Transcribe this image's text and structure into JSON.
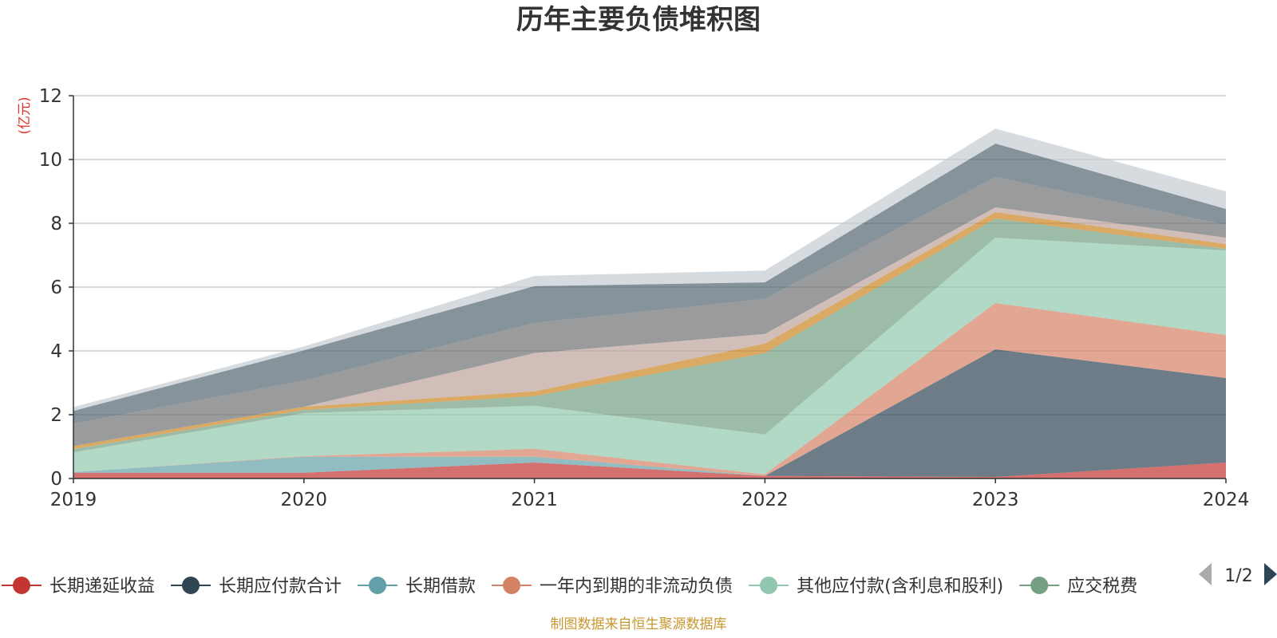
{
  "chart_data": {
    "type": "area",
    "stacked": true,
    "title": "历年主要负债堆积图",
    "unit_label": "(亿元)",
    "x": [
      "2019",
      "2020",
      "2021",
      "2022",
      "2023",
      "2024"
    ],
    "ylim": [
      0,
      12
    ],
    "yticks": [
      0,
      2,
      4,
      6,
      8,
      10,
      12
    ],
    "grid": true,
    "legend_position": "bottom",
    "series": [
      {
        "name": "长期递延收益",
        "color": "#c23531",
        "values": [
          0.18,
          0.18,
          0.5,
          0.08,
          0.05,
          0.5
        ]
      },
      {
        "name": "长期应付款合计",
        "color": "#2f4554",
        "values": [
          0,
          0,
          0,
          0,
          4.0,
          2.65
        ]
      },
      {
        "name": "长期借款",
        "color": "#61a0a8",
        "values": [
          0.02,
          0.5,
          0.18,
          0,
          0,
          0
        ]
      },
      {
        "name": "一年内到期的非流动负债",
        "color": "#d48265",
        "values": [
          0,
          0.02,
          0.25,
          0.05,
          1.45,
          1.35
        ]
      },
      {
        "name": "其他应付款(含利息和股利)",
        "color": "#91c7ae",
        "values": [
          0.62,
          1.35,
          1.35,
          1.25,
          2.05,
          2.65
        ]
      },
      {
        "name": "应交税费",
        "color": "#749f83",
        "values": [
          0.1,
          0.1,
          0.3,
          2.55,
          0.6,
          0.05
        ]
      },
      {
        "name": "",
        "color": "#ca8622",
        "values": [
          0.1,
          0.1,
          0.15,
          0.3,
          0.2,
          0.15
        ]
      },
      {
        "name": "",
        "color": "#bda29a",
        "values": [
          0,
          0,
          1.2,
          0.3,
          0.15,
          0.2
        ]
      },
      {
        "name": "",
        "color": "#6e7074",
        "values": [
          0.7,
          0.82,
          0.95,
          1.1,
          0.95,
          0.4
        ]
      },
      {
        "name": "",
        "color": "#546570",
        "values": [
          0.4,
          0.95,
          1.15,
          0.52,
          1.05,
          0.5
        ]
      },
      {
        "name": "",
        "color": "#c4ccd3",
        "values": [
          0.12,
          0.12,
          0.32,
          0.37,
          0.47,
          0.55
        ]
      }
    ]
  },
  "legend": {
    "visible_count": 6,
    "items": [
      "长期递延收益",
      "长期应付款合计",
      "长期借款",
      "一年内到期的非流动负债",
      "其他应付款(含利息和股利)",
      "应交税费"
    ],
    "page_indicator": "1/2"
  },
  "source_note": "制图数据来自恒生聚源数据库",
  "colors": {
    "axis": "#333333",
    "grid": "#cccccc",
    "unit": "#e0312b",
    "source": "#c8962e",
    "page_arrow_disabled": "#aaaaaa",
    "page_arrow_active": "#2f4554"
  }
}
